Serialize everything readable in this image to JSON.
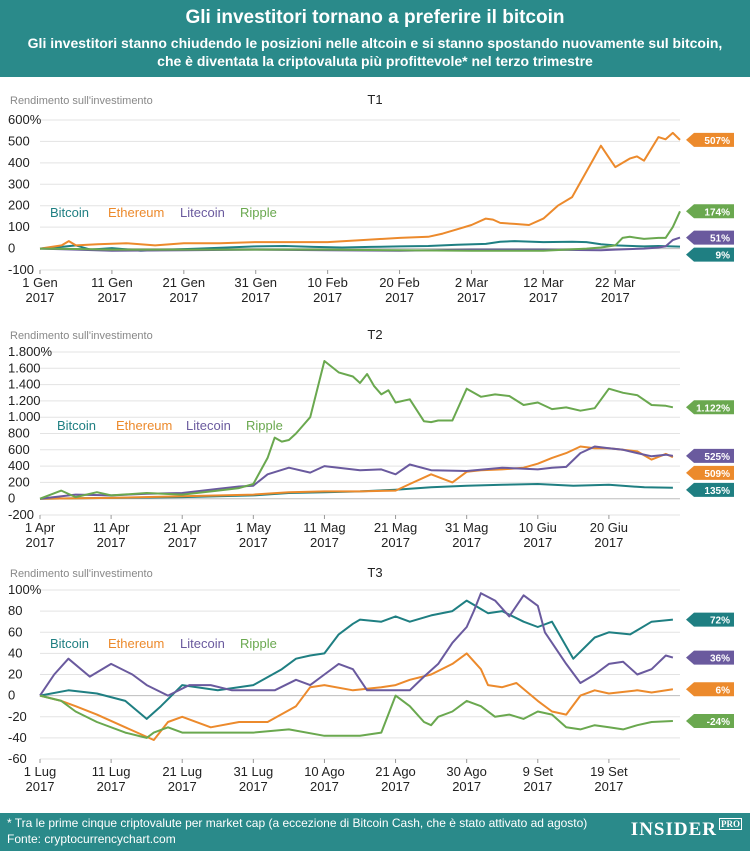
{
  "header": {
    "title": "Gli investitori tornano a preferire il bitcoin",
    "subtitle_line1": "Gli investitori stanno chiudendo le posizioni nelle altcoin e si stanno spostando nuovamente sul bitcoin,",
    "subtitle_line2": "che è diventata la criptovaluta più profittevole* nel terzo trimestre"
  },
  "footer": {
    "note": "* Tra le prime cinque criptovalute per market cap (a eccezione di Bitcoin Cash, che è stato attivato ad agosto)",
    "source": "Fonte: cryptocurrencychart.com",
    "logo": "INSIDER",
    "logo_badge": "PRO"
  },
  "colors": {
    "Bitcoin": "#1f7f82",
    "Ethereum": "#ec8a2c",
    "Litecoin": "#6a5a9e",
    "Ripple": "#6aa84f"
  },
  "chart_data": [
    {
      "type": "line",
      "title": "T1",
      "ylabel": "Rendimento sull'investimento",
      "ylim": [
        -100,
        600
      ],
      "yticks": [
        -100,
        0,
        100,
        200,
        300,
        400,
        500,
        600
      ],
      "ytick_labels": [
        "-100",
        "0",
        "100",
        "200",
        "300",
        "400",
        "500",
        "600%"
      ],
      "xlim": [
        0,
        89
      ],
      "xticks": [
        0,
        10,
        20,
        30,
        40,
        50,
        60,
        70,
        80
      ],
      "xtick_labels": [
        [
          "1 Gen",
          "2017"
        ],
        [
          "11 Gen",
          "2017"
        ],
        [
          "21 Gen",
          "2017"
        ],
        [
          "31 Gen",
          "2017"
        ],
        [
          "10 Feb",
          "2017"
        ],
        [
          "20 Feb",
          "2017"
        ],
        [
          "2 Mar",
          "2017"
        ],
        [
          "12 Mar",
          "2017"
        ],
        [
          "22 Mar",
          "2017"
        ]
      ],
      "legend": [
        "Bitcoin",
        "Ethereum",
        "Litecoin",
        "Ripple"
      ],
      "series": [
        {
          "name": "Bitcoin",
          "x": [
            0,
            3,
            5,
            7,
            10,
            14,
            18,
            22,
            26,
            30,
            34,
            38,
            42,
            46,
            50,
            54,
            58,
            62,
            64,
            66,
            70,
            74,
            76,
            78,
            80,
            84,
            86,
            89
          ],
          "y": [
            0,
            8,
            15,
            -5,
            2,
            -10,
            -5,
            0,
            5,
            10,
            12,
            8,
            5,
            8,
            10,
            12,
            18,
            22,
            32,
            35,
            30,
            32,
            30,
            20,
            15,
            10,
            12,
            9
          ]
        },
        {
          "name": "Ethereum",
          "x": [
            0,
            3,
            4,
            5,
            8,
            12,
            16,
            20,
            25,
            30,
            35,
            40,
            45,
            50,
            54,
            56,
            58,
            60,
            62,
            63,
            64,
            66,
            68,
            70,
            72,
            74,
            75,
            77,
            78,
            79,
            80,
            82,
            83,
            84,
            86,
            87,
            88,
            89
          ],
          "y": [
            0,
            15,
            35,
            15,
            20,
            25,
            15,
            25,
            25,
            30,
            30,
            30,
            40,
            50,
            55,
            70,
            90,
            110,
            140,
            135,
            120,
            115,
            110,
            140,
            200,
            240,
            300,
            420,
            480,
            430,
            380,
            420,
            430,
            410,
            520,
            510,
            540,
            507
          ]
        },
        {
          "name": "Litecoin",
          "x": [
            0,
            5,
            10,
            20,
            30,
            40,
            50,
            60,
            70,
            78,
            80,
            84,
            86,
            87,
            88,
            89
          ],
          "y": [
            0,
            -5,
            -10,
            -8,
            -5,
            -8,
            -10,
            -5,
            -5,
            -8,
            -5,
            0,
            5,
            10,
            40,
            51
          ]
        },
        {
          "name": "Ripple",
          "x": [
            0,
            5,
            10,
            20,
            30,
            40,
            50,
            60,
            70,
            76,
            78,
            80,
            81,
            82,
            84,
            86,
            87,
            88,
            89
          ],
          "y": [
            0,
            -2,
            -5,
            -5,
            -5,
            -5,
            -8,
            -10,
            -10,
            0,
            5,
            15,
            50,
            55,
            45,
            50,
            50,
            100,
            174
          ]
        }
      ],
      "end_labels": [
        {
          "series": "Ethereum",
          "text": "507%",
          "value": 507
        },
        {
          "series": "Ripple",
          "text": "174%",
          "value": 174
        },
        {
          "series": "Litecoin",
          "text": "51%",
          "value": 51
        },
        {
          "series": "Bitcoin",
          "text": "9%",
          "value": 9
        }
      ]
    },
    {
      "type": "line",
      "title": "T2",
      "ylabel": "Rendimento sull'investimento",
      "ylim": [
        -200,
        1800
      ],
      "yticks": [
        -200,
        0,
        200,
        400,
        600,
        800,
        1000,
        1200,
        1400,
        1600,
        1800
      ],
      "ytick_labels": [
        "-200",
        "0",
        "200",
        "400",
        "600",
        "800",
        "1.000",
        "1.200",
        "1.400",
        "1.600",
        "1.800%"
      ],
      "xlim": [
        0,
        90
      ],
      "xticks": [
        0,
        10,
        20,
        30,
        40,
        50,
        60,
        70,
        80
      ],
      "xtick_labels": [
        [
          "1 Apr",
          "2017"
        ],
        [
          "11 Apr",
          "2017"
        ],
        [
          "21 Apr",
          "2017"
        ],
        [
          "1 May",
          "2017"
        ],
        [
          "11 Mag",
          "2017"
        ],
        [
          "21 Mag",
          "2017"
        ],
        [
          "31 Mag",
          "2017"
        ],
        [
          "10 Giu",
          "2017"
        ],
        [
          "20 Giu",
          "2017"
        ]
      ],
      "legend": [
        "Bitcoin",
        "Ethereum",
        "Litecoin",
        "Ripple"
      ],
      "series": [
        {
          "name": "Bitcoin",
          "x": [
            0,
            10,
            20,
            30,
            35,
            40,
            45,
            50,
            55,
            60,
            65,
            70,
            75,
            80,
            85,
            89
          ],
          "y": [
            0,
            10,
            20,
            40,
            70,
            80,
            90,
            110,
            140,
            160,
            170,
            180,
            160,
            170,
            140,
            135
          ]
        },
        {
          "name": "Ethereum",
          "x": [
            0,
            10,
            20,
            30,
            35,
            40,
            45,
            50,
            52,
            55,
            58,
            60,
            62,
            65,
            68,
            70,
            72,
            74,
            76,
            78,
            80,
            82,
            84,
            86,
            88,
            89
          ],
          "y": [
            0,
            10,
            30,
            50,
            80,
            90,
            90,
            100,
            180,
            300,
            200,
            330,
            350,
            360,
            380,
            430,
            500,
            560,
            640,
            620,
            620,
            600,
            580,
            480,
            550,
            509
          ]
        },
        {
          "name": "Litecoin",
          "x": [
            0,
            5,
            10,
            15,
            20,
            25,
            28,
            30,
            32,
            35,
            38,
            40,
            45,
            48,
            50,
            52,
            55,
            60,
            65,
            70,
            72,
            74,
            76,
            78,
            80,
            82,
            84,
            86,
            88,
            89
          ],
          "y": [
            0,
            50,
            40,
            60,
            70,
            120,
            150,
            160,
            300,
            380,
            320,
            400,
            350,
            360,
            300,
            420,
            350,
            340,
            380,
            360,
            380,
            390,
            560,
            640,
            620,
            600,
            560,
            520,
            540,
            525
          ]
        },
        {
          "name": "Ripple",
          "x": [
            0,
            3,
            5,
            8,
            10,
            15,
            20,
            25,
            28,
            30,
            32,
            33,
            34,
            35,
            36,
            37,
            38,
            40,
            42,
            44,
            45,
            46,
            47,
            48,
            49,
            50,
            52,
            54,
            55,
            56,
            58,
            60,
            62,
            64,
            66,
            68,
            70,
            72,
            74,
            76,
            78,
            80,
            82,
            84,
            86,
            88,
            89
          ],
          "y": [
            0,
            100,
            20,
            80,
            40,
            70,
            50,
            100,
            130,
            180,
            500,
            750,
            700,
            720,
            800,
            900,
            1000,
            1690,
            1550,
            1500,
            1420,
            1530,
            1380,
            1280,
            1330,
            1180,
            1220,
            950,
            940,
            960,
            960,
            1350,
            1250,
            1280,
            1260,
            1150,
            1180,
            1100,
            1120,
            1080,
            1110,
            1350,
            1300,
            1270,
            1150,
            1140,
            1122
          ]
        }
      ],
      "end_labels": [
        {
          "series": "Ripple",
          "text": "1.122%",
          "value": 1122
        },
        {
          "series": "Litecoin",
          "text": "525%",
          "value": 525
        },
        {
          "series": "Ethereum",
          "text": "509%",
          "value": 509
        },
        {
          "series": "Bitcoin",
          "text": "135%",
          "value": 135
        }
      ]
    },
    {
      "type": "line",
      "title": "T3",
      "ylabel": "Rendimento sull'investimento",
      "ylim": [
        -60,
        100
      ],
      "yticks": [
        -60,
        -40,
        -20,
        0,
        20,
        40,
        60,
        80,
        100
      ],
      "ytick_labels": [
        "-60",
        "-40",
        "-20",
        "0",
        "20",
        "40",
        "60",
        "80",
        "100%"
      ],
      "xlim": [
        0,
        90
      ],
      "xticks": [
        0,
        10,
        20,
        30,
        40,
        50,
        60,
        70,
        80
      ],
      "xtick_labels": [
        [
          "1 Lug",
          "2017"
        ],
        [
          "11 Lug",
          "2017"
        ],
        [
          "21 Lug",
          "2017"
        ],
        [
          "31 Lug",
          "2017"
        ],
        [
          "10 Ago",
          "2017"
        ],
        [
          "21 Ago",
          "2017"
        ],
        [
          "30 Ago",
          "2017"
        ],
        [
          "9 Set",
          "2017"
        ],
        [
          "19 Set",
          "2017"
        ]
      ],
      "legend": [
        "Bitcoin",
        "Ethereum",
        "Litecoin",
        "Ripple"
      ],
      "series": [
        {
          "name": "Bitcoin",
          "x": [
            0,
            4,
            8,
            12,
            15,
            17,
            20,
            25,
            30,
            34,
            36,
            38,
            40,
            42,
            44,
            45,
            48,
            50,
            52,
            55,
            58,
            60,
            62,
            63,
            65,
            68,
            70,
            72,
            75,
            78,
            80,
            83,
            86,
            89
          ],
          "y": [
            0,
            5,
            2,
            -5,
            -22,
            -10,
            10,
            5,
            10,
            25,
            35,
            38,
            40,
            58,
            68,
            72,
            70,
            75,
            70,
            76,
            80,
            90,
            82,
            78,
            80,
            70,
            65,
            70,
            35,
            55,
            60,
            58,
            70,
            72
          ]
        },
        {
          "name": "Ethereum",
          "x": [
            0,
            3,
            5,
            8,
            12,
            16,
            18,
            20,
            24,
            28,
            32,
            36,
            38,
            40,
            44,
            48,
            50,
            52,
            55,
            58,
            60,
            62,
            63,
            65,
            67,
            70,
            72,
            74,
            76,
            78,
            80,
            84,
            86,
            89
          ],
          "y": [
            0,
            -5,
            -10,
            -18,
            -30,
            -42,
            -25,
            -20,
            -30,
            -25,
            -25,
            -10,
            8,
            10,
            5,
            8,
            10,
            15,
            20,
            30,
            40,
            25,
            10,
            8,
            12,
            -5,
            -15,
            -18,
            0,
            5,
            2,
            5,
            3,
            6
          ]
        },
        {
          "name": "Litecoin",
          "x": [
            0,
            2,
            4,
            7,
            10,
            13,
            15,
            18,
            21,
            24,
            27,
            30,
            33,
            36,
            38,
            40,
            42,
            44,
            46,
            48,
            50,
            52,
            54,
            56,
            58,
            60,
            61,
            62,
            64,
            66,
            68,
            70,
            71,
            72,
            74,
            76,
            78,
            80,
            82,
            84,
            86,
            88,
            89
          ],
          "y": [
            0,
            20,
            35,
            18,
            30,
            20,
            10,
            0,
            10,
            10,
            5,
            5,
            5,
            15,
            10,
            20,
            30,
            25,
            5,
            5,
            5,
            5,
            18,
            30,
            50,
            65,
            80,
            97,
            90,
            75,
            95,
            85,
            60,
            50,
            30,
            12,
            20,
            30,
            32,
            20,
            25,
            38,
            36
          ]
        },
        {
          "name": "Ripple",
          "x": [
            0,
            3,
            5,
            8,
            12,
            15,
            16,
            18,
            20,
            25,
            30,
            35,
            40,
            45,
            48,
            50,
            52,
            54,
            55,
            56,
            58,
            60,
            62,
            64,
            66,
            68,
            70,
            72,
            74,
            76,
            78,
            80,
            82,
            84,
            86,
            89
          ],
          "y": [
            0,
            -5,
            -15,
            -25,
            -35,
            -40,
            -35,
            -30,
            -35,
            -35,
            -35,
            -32,
            -38,
            -38,
            -35,
            0,
            -10,
            -25,
            -28,
            -20,
            -15,
            -5,
            -10,
            -20,
            -18,
            -22,
            -15,
            -18,
            -30,
            -32,
            -28,
            -30,
            -32,
            -28,
            -25,
            -24
          ]
        }
      ],
      "end_labels": [
        {
          "series": "Bitcoin",
          "text": "72%",
          "value": 72
        },
        {
          "series": "Litecoin",
          "text": "36%",
          "value": 36
        },
        {
          "series": "Ethereum",
          "text": "6%",
          "value": 6
        },
        {
          "series": "Ripple",
          "text": "-24%",
          "value": -24
        }
      ]
    }
  ]
}
